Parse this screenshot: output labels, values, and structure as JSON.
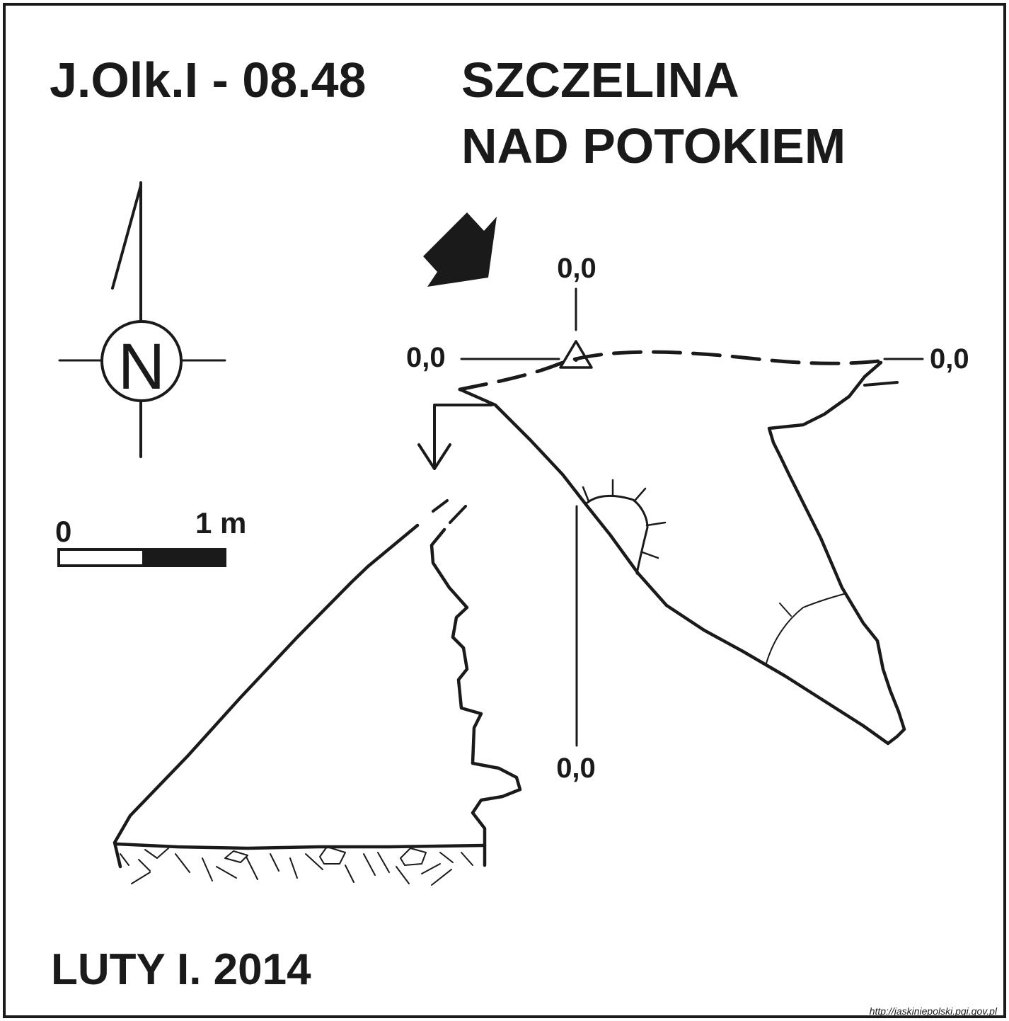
{
  "title": {
    "code": "J.Olk.I - 08.48",
    "name_line1": "SZCZELINA",
    "name_line2": "NAD POTOKIEM"
  },
  "compass": {
    "letter": "N",
    "icon": "north-arrow-icon"
  },
  "scale_bar": {
    "start_label": "0",
    "end_label": "1 m",
    "length_m": 1
  },
  "datum_labels": {
    "top": "0,0",
    "left": "0,0",
    "right": "0,0",
    "bottom": "0,0"
  },
  "entrance_icon": "entrance-arrow-icon",
  "survey_station_icon": "triangle-station-icon",
  "date": "LUTY I. 2014",
  "credit": "http://jaskiniepolski.pgi.gov.pl",
  "colors": {
    "ink": "#1a1a1a",
    "background": "#ffffff"
  }
}
